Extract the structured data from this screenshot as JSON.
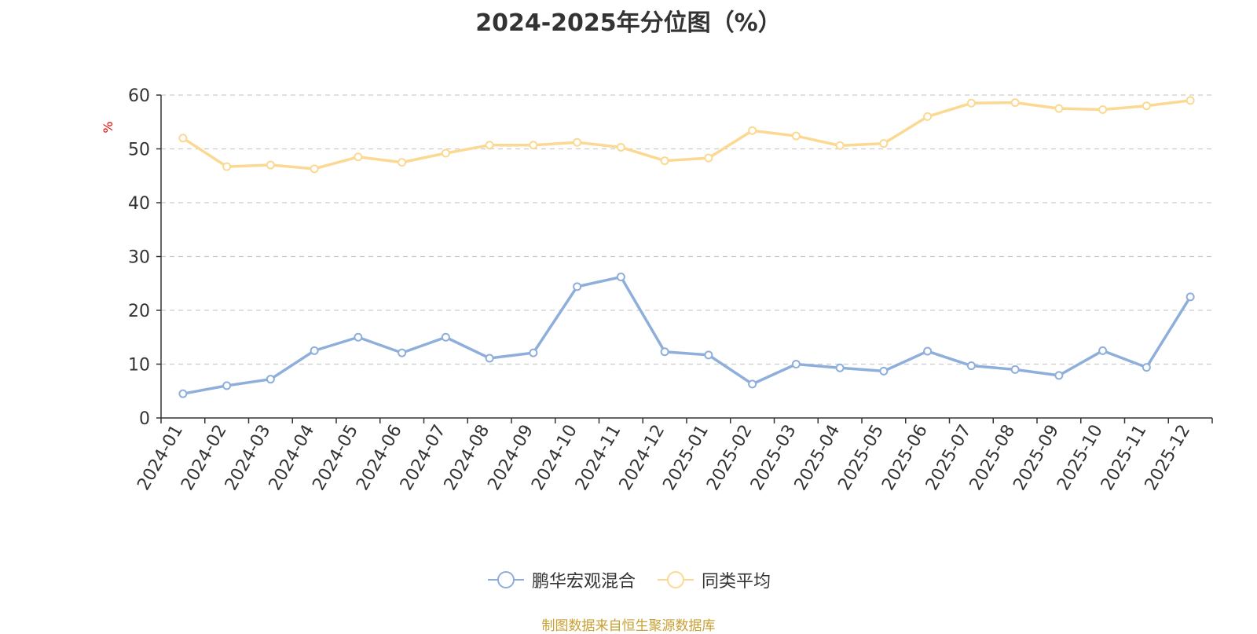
{
  "chart_data": {
    "type": "line",
    "title": "2024-2025年分位图（%）",
    "ylabel": "%",
    "xlabel": "",
    "ylim": [
      0,
      60
    ],
    "yticks": [
      0,
      10,
      20,
      30,
      40,
      50,
      60
    ],
    "grid": true,
    "legend_position": "bottom-center",
    "categories": [
      "2024-01",
      "2024-02",
      "2024-03",
      "2024-04",
      "2024-05",
      "2024-06",
      "2024-07",
      "2024-08",
      "2024-09",
      "2024-10",
      "2024-11",
      "2024-12",
      "2025-01",
      "2025-02",
      "2025-03",
      "2025-04",
      "2025-05",
      "2025-06",
      "2025-07",
      "2025-08",
      "2025-09",
      "2025-10",
      "2025-11",
      "2025-12"
    ],
    "series": [
      {
        "name": "鹏华宏观混合",
        "color": "#8eaedb",
        "values": [
          4.5,
          6.0,
          7.2,
          12.5,
          15.0,
          12.1,
          15.0,
          11.1,
          12.1,
          24.4,
          26.2,
          12.3,
          11.7,
          6.3,
          10.0,
          9.3,
          8.7,
          12.4,
          9.7,
          9.0,
          7.9,
          12.5,
          9.4,
          22.5
        ]
      },
      {
        "name": "同类平均",
        "color": "#fbd992",
        "values": [
          52.0,
          46.7,
          47.0,
          46.3,
          48.5,
          47.5,
          49.2,
          50.7,
          50.7,
          51.2,
          50.3,
          47.8,
          48.3,
          53.4,
          52.4,
          50.6,
          51.0,
          56.0,
          58.5,
          58.6,
          57.5,
          57.3,
          58.0,
          59.0
        ]
      }
    ]
  },
  "footer": {
    "source": "制图数据来自恒生聚源数据库"
  }
}
